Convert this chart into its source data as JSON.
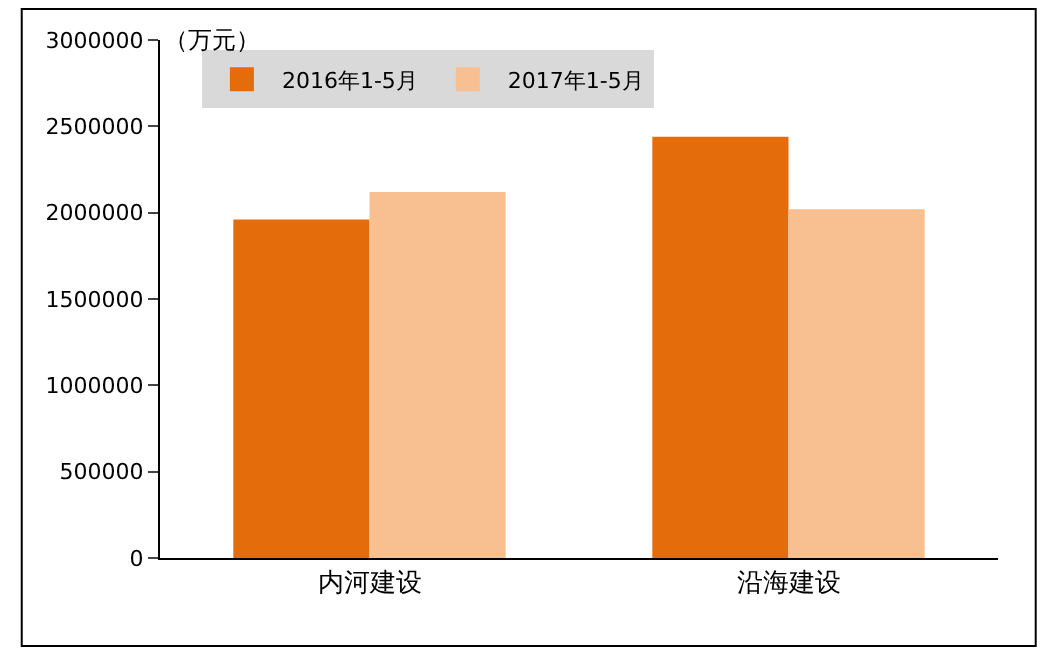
{
  "chart_data": {
    "type": "bar",
    "ylabel": "（万元）",
    "categories": [
      "内河建设",
      "沿海建设"
    ],
    "series": [
      {
        "name": "2016年1-5月",
        "color": "#e46c0a",
        "values": [
          1960000,
          2440000
        ]
      },
      {
        "name": "2017年1-5月",
        "color": "#f8c090",
        "values": [
          2120000,
          2020000
        ]
      }
    ],
    "ylim": [
      0,
      3000000
    ],
    "yticks": [
      0,
      500000,
      1000000,
      1500000,
      2000000,
      2500000,
      3000000
    ],
    "legend": "top left"
  }
}
